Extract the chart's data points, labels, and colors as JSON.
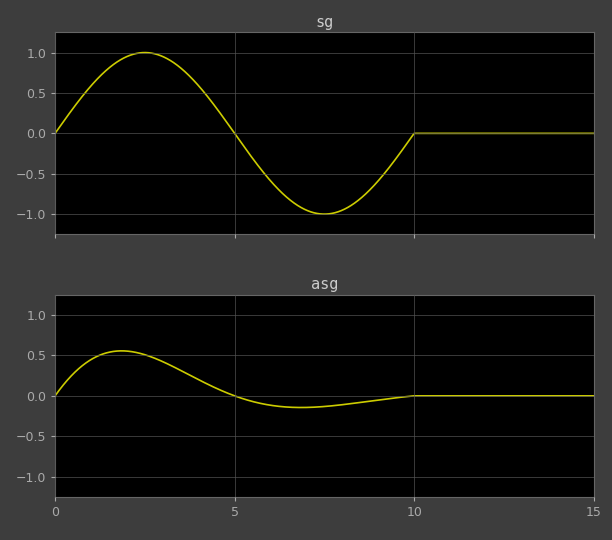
{
  "title_top": "sg",
  "title_bottom": "asg",
  "xlim": [
    0,
    15
  ],
  "ylim": [
    -1.25,
    1.25
  ],
  "yticks": [
    -1,
    -0.5,
    0,
    0.5,
    1
  ],
  "xticks": [
    0,
    5,
    10,
    15
  ],
  "line_color": "#cccc00",
  "bg_color": "#000000",
  "outer_bg": "#3d3d3d",
  "title_color": "#cccccc",
  "tick_color": "#aaaaaa",
  "grid_color": "#555555",
  "signal_end": 10.0,
  "omega": 0.6283185307179586,
  "alpha": 0.27,
  "line_width": 1.2,
  "title_fontsize": 11
}
